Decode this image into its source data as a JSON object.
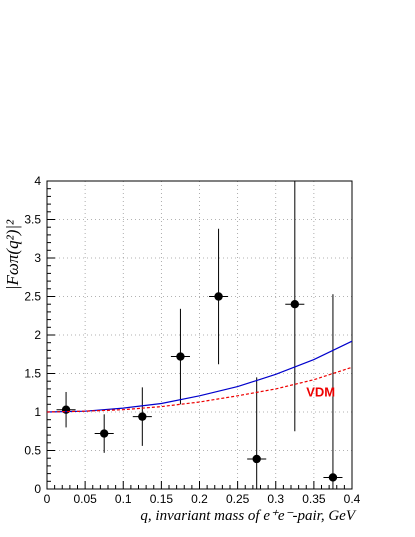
{
  "chart_data": {
    "type": "scatter",
    "title": "",
    "xlabel": "q, invariant mass of e⁺e⁻-pair, GeV",
    "ylabel": "|Fωπ(q²)|²",
    "xlim": [
      0,
      0.4
    ],
    "ylim": [
      0,
      4
    ],
    "grid": true,
    "x_ticks": [
      "0",
      "0.05",
      "0.1",
      "0.15",
      "0.2",
      "0.25",
      "0.3",
      "0.35",
      "0.4"
    ],
    "y_ticks": [
      "0",
      "0.5",
      "1",
      "1.5",
      "2",
      "2.5",
      "3",
      "3.5",
      "4"
    ],
    "series": [
      {
        "style": "points-with-errors",
        "color": "#000000",
        "points": [
          {
            "x": 0.025,
            "y": 1.03,
            "xerr": 0.0125,
            "yerr_low": 0.23,
            "yerr_high": 0.23
          },
          {
            "x": 0.075,
            "y": 0.72,
            "xerr": 0.0125,
            "yerr_low": 0.25,
            "yerr_high": 0.25
          },
          {
            "x": 0.125,
            "y": 0.94,
            "xerr": 0.0125,
            "yerr_low": 0.38,
            "yerr_high": 0.38
          },
          {
            "x": 0.175,
            "y": 1.72,
            "xerr": 0.0125,
            "yerr_low": 0.62,
            "yerr_high": 0.62
          },
          {
            "x": 0.225,
            "y": 2.5,
            "xerr": 0.0125,
            "yerr_low": 0.88,
            "yerr_high": 0.88
          },
          {
            "x": 0.275,
            "y": 0.39,
            "xerr": 0.0125,
            "yerr_low": 0.39,
            "yerr_high": 1.06
          },
          {
            "x": 0.325,
            "y": 2.4,
            "xerr": 0.0125,
            "yerr_low": 1.65,
            "yerr_high": 1.65
          },
          {
            "x": 0.375,
            "y": 0.15,
            "xerr": 0.0125,
            "yerr_low": 0.15,
            "yerr_high": 2.38
          }
        ]
      },
      {
        "style": "solid-line",
        "color": "#0000cc",
        "x": [
          0,
          0.05,
          0.1,
          0.15,
          0.2,
          0.25,
          0.3,
          0.35,
          0.4
        ],
        "y": [
          1.0,
          1.01,
          1.05,
          1.11,
          1.21,
          1.33,
          1.49,
          1.68,
          1.92
        ]
      },
      {
        "name": "VDM",
        "style": "dashed-line",
        "color": "#ee0000",
        "x": [
          0,
          0.05,
          0.1,
          0.15,
          0.2,
          0.25,
          0.3,
          0.35,
          0.4
        ],
        "y": [
          1.0,
          1.01,
          1.03,
          1.07,
          1.13,
          1.21,
          1.3,
          1.42,
          1.58
        ]
      }
    ],
    "annotations": [
      {
        "text": "VDM",
        "color": "#ee0000",
        "x": 0.34,
        "y": 1.2
      }
    ]
  }
}
